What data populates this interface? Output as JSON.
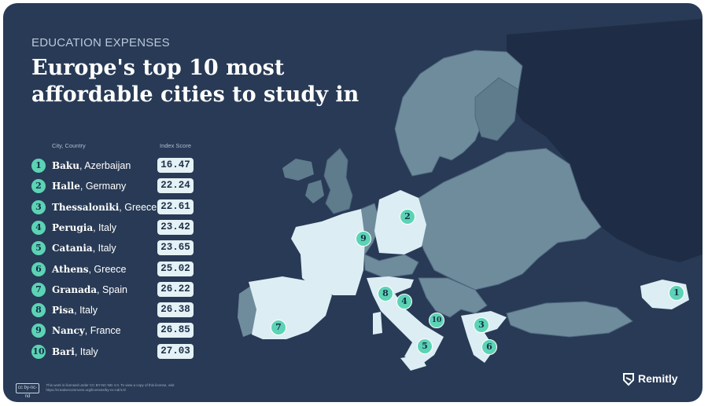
{
  "header": {
    "kicker": "EDUCATION EXPENSES",
    "title": "Europe's top 10 most affordable cities to study in"
  },
  "table": {
    "col_city": "City, Country",
    "col_score": "Index Score",
    "rows": [
      {
        "rank": "1",
        "city": "Baku",
        "country": ", Azerbaijan",
        "score": "16.47"
      },
      {
        "rank": "2",
        "city": "Halle",
        "country": ", Germany",
        "score": "22.24"
      },
      {
        "rank": "3",
        "city": "Thessaloniki",
        "country": ", Greece",
        "score": "22.61"
      },
      {
        "rank": "4",
        "city": "Perugia",
        "country": ", Italy",
        "score": "23.42"
      },
      {
        "rank": "5",
        "city": "Catania",
        "country": ", Italy",
        "score": "23.65"
      },
      {
        "rank": "6",
        "city": "Athens",
        "country": ", Greece",
        "score": "25.02"
      },
      {
        "rank": "7",
        "city": "Granada",
        "country": ", Spain",
        "score": "26.22"
      },
      {
        "rank": "8",
        "city": "Pisa",
        "country": ", Italy",
        "score": "26.38"
      },
      {
        "rank": "9",
        "city": "Nancy",
        "country": ", France",
        "score": "26.85"
      },
      {
        "rank": "10",
        "city": "Bari",
        "country": ", Italy",
        "score": "27.03"
      }
    ]
  },
  "map": {
    "pins": [
      "1",
      "2",
      "3",
      "4",
      "5",
      "6",
      "7",
      "8",
      "9",
      "10"
    ]
  },
  "footer": {
    "cc_badge": "cc by-nc-nd",
    "license": "This work is licensed under CC BY-NC-ND 4.0. To view a copy of this license, visit https://creativecommons.org/licenses/by-nc-nd/4.0/",
    "brand": "Remitly"
  },
  "colors": {
    "background": "#283a55",
    "accent": "#5cd3b4",
    "highlight_country": "#dceef4",
    "land": "#6f8c9c",
    "land_dark": "#4d677e",
    "russia": "#1e2d45"
  }
}
